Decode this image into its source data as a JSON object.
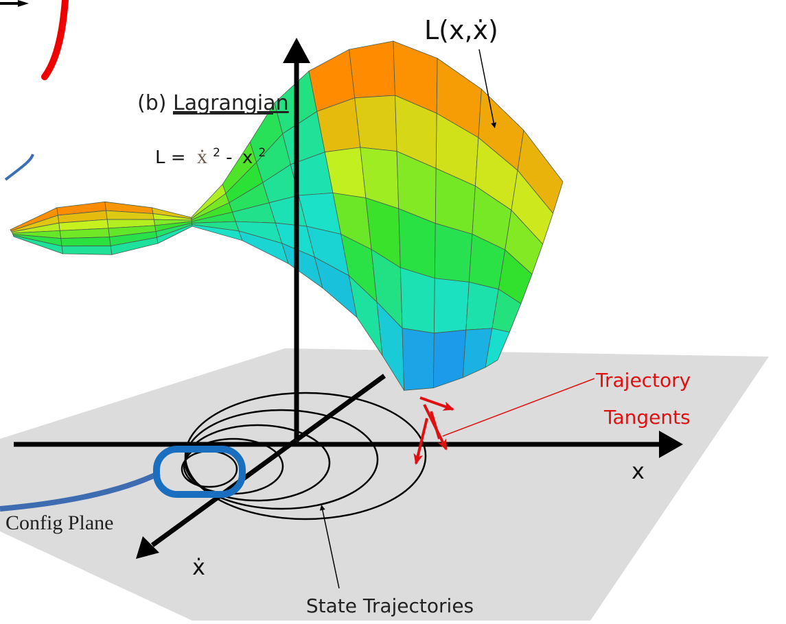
{
  "label_b": "(b)",
  "label_lagrangian": "Lagrangian",
  "equation": {
    "lhs": "L =",
    "term1": "ẋ",
    "exp1": "2",
    "op": "-",
    "term2": "x",
    "exp2": "2"
  },
  "surface_label": "L(x,ẋ)",
  "tangent_label": [
    "Trajectory",
    "Tangents"
  ],
  "x_axis_label": "x",
  "xdot_axis_label": "ẋ",
  "plane_label": "Config Plane",
  "trajectory_label": "State Trajectories"
}
